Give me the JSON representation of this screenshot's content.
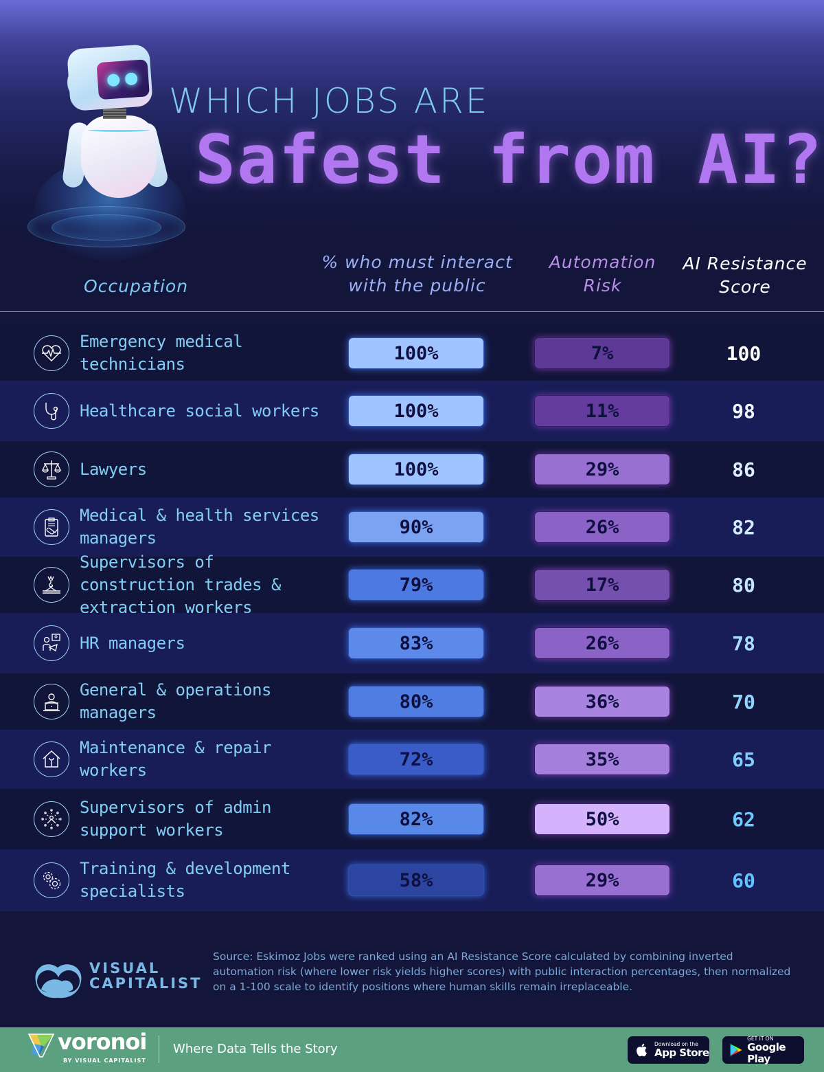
{
  "title": {
    "line1": "WHICH JOBS ARE",
    "line2": "Safest from AI?"
  },
  "columns": {
    "occupation": "Occupation",
    "public_interaction": "% who must interact with the public",
    "automation_risk": "Automation Risk",
    "ai_resistance": "AI Resistance Score"
  },
  "rows": [
    {
      "occupation": "Emergency medical technicians",
      "icon": "heart-pulse-icon",
      "public": "100%",
      "automation": "7%",
      "score": "100"
    },
    {
      "occupation": "Healthcare social workers",
      "icon": "stethoscope-icon",
      "public": "100%",
      "automation": "11%",
      "score": "98"
    },
    {
      "occupation": "Lawyers",
      "icon": "scales-of-justice-icon",
      "public": "100%",
      "automation": "29%",
      "score": "86"
    },
    {
      "occupation": "Medical & health services managers",
      "icon": "clipboard-pill-icon",
      "public": "90%",
      "automation": "26%",
      "score": "82"
    },
    {
      "occupation": "Supervisors of construction trades & extraction workers",
      "icon": "crane-hook-icon",
      "public": "79%",
      "automation": "17%",
      "score": "80"
    },
    {
      "occupation": "HR managers",
      "icon": "hr-interview-icon",
      "public": "83%",
      "automation": "26%",
      "score": "78"
    },
    {
      "occupation": "General & operations managers",
      "icon": "person-laptop-icon",
      "public": "80%",
      "automation": "36%",
      "score": "70"
    },
    {
      "occupation": "Maintenance & repair workers",
      "icon": "house-wrench-icon",
      "public": "72%",
      "automation": "35%",
      "score": "65"
    },
    {
      "occupation": "Supervisors of admin support workers",
      "icon": "network-person-icon",
      "public": "82%",
      "automation": "50%",
      "score": "62"
    },
    {
      "occupation": "Training & development specialists",
      "icon": "gears-icon",
      "public": "58%",
      "automation": "29%",
      "score": "60"
    }
  ],
  "colors": {
    "public_pills": [
      "#a0c4ff",
      "#a0c4ff",
      "#a0c4ff",
      "#7ba3f2",
      "#4d7ae0",
      "#5c89ea",
      "#4f7de2",
      "#3a5cc8",
      "#5888e8",
      "#2c45a0"
    ],
    "automation_pills": [
      "#5c3a95",
      "#643c9e",
      "#9870d2",
      "#8b62c6",
      "#7650ae",
      "#8b62c6",
      "#a883e0",
      "#a47fdc",
      "#d4b3fc",
      "#9870d2"
    ],
    "scores": [
      "#ffffff",
      "#f0f6ff",
      "#dcefff",
      "#d2ecff",
      "#c4e6ff",
      "#a9dcff",
      "#92d6ff",
      "#7fd0ff",
      "#6fcbff",
      "#5fc5ff"
    ],
    "title_accent": "#b177f0",
    "footer_bg": "#5ba07f"
  },
  "source": {
    "text": "Source: Eskimoz Jobs were ranked using an AI Resistance Score calculated by combining inverted automation risk (where lower risk yields higher scores) with public interaction percentages, then normalized on a 1-100 scale to identify positions where human skills remain irreplaceable."
  },
  "branding": {
    "vc_line1": "VISUAL",
    "vc_line2": "CAPITALIST",
    "voronoi": "voronoi",
    "voronoi_sub": "BY VISUAL CAPITALIST",
    "tagline": "Where Data Tells the Story",
    "app_store_small": "Download on the",
    "app_store_big": "App Store",
    "google_small": "GET IT ON",
    "google_big": "Google Play"
  },
  "chart_data": {
    "type": "table",
    "title": "Which Jobs Are Safest from AI?",
    "columns": [
      "Occupation",
      "% who must interact with the public",
      "Automation Risk",
      "AI Resistance Score"
    ],
    "categories": [
      "Emergency medical technicians",
      "Healthcare social workers",
      "Lawyers",
      "Medical & health services managers",
      "Supervisors of construction trades & extraction workers",
      "HR managers",
      "General & operations managers",
      "Maintenance & repair workers",
      "Supervisors of admin support workers",
      "Training & development specialists"
    ],
    "series": [
      {
        "name": "% who must interact with the public",
        "values": [
          100,
          100,
          100,
          90,
          79,
          83,
          80,
          72,
          82,
          58
        ],
        "unit": "%"
      },
      {
        "name": "Automation Risk",
        "values": [
          7,
          11,
          29,
          26,
          17,
          26,
          36,
          35,
          50,
          29
        ],
        "unit": "%"
      },
      {
        "name": "AI Resistance Score",
        "values": [
          100,
          98,
          86,
          82,
          80,
          78,
          70,
          65,
          62,
          60
        ]
      }
    ],
    "source": "Eskimoz"
  }
}
